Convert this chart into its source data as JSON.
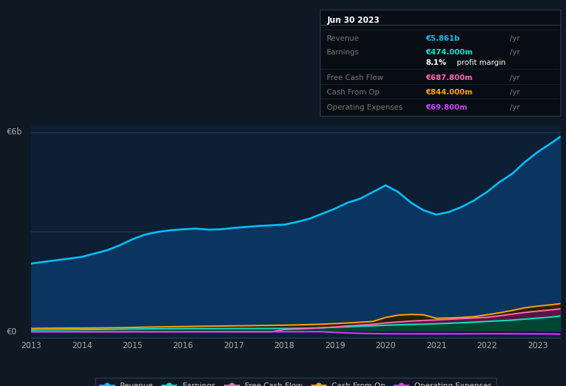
{
  "bg_color": "#0e1923",
  "plot_bg_color": "#0d1f35",
  "years": [
    2013.0,
    2013.25,
    2013.5,
    2013.75,
    2014.0,
    2014.25,
    2014.5,
    2014.75,
    2015.0,
    2015.25,
    2015.5,
    2015.75,
    2016.0,
    2016.25,
    2016.5,
    2016.75,
    2017.0,
    2017.25,
    2017.5,
    2017.75,
    2018.0,
    2018.25,
    2018.5,
    2018.75,
    2019.0,
    2019.25,
    2019.5,
    2019.75,
    2020.0,
    2020.25,
    2020.5,
    2020.75,
    2021.0,
    2021.25,
    2021.5,
    2021.75,
    2022.0,
    2022.25,
    2022.5,
    2022.75,
    2023.0,
    2023.25,
    2023.45
  ],
  "revenue": [
    2.05,
    2.1,
    2.15,
    2.2,
    2.25,
    2.35,
    2.45,
    2.6,
    2.78,
    2.92,
    3.0,
    3.05,
    3.08,
    3.1,
    3.07,
    3.08,
    3.12,
    3.15,
    3.18,
    3.2,
    3.22,
    3.3,
    3.4,
    3.55,
    3.7,
    3.88,
    4.0,
    4.2,
    4.4,
    4.2,
    3.88,
    3.65,
    3.52,
    3.6,
    3.75,
    3.95,
    4.2,
    4.5,
    4.75,
    5.1,
    5.4,
    5.65,
    5.861
  ],
  "earnings": [
    0.055,
    0.058,
    0.06,
    0.062,
    0.065,
    0.068,
    0.072,
    0.078,
    0.082,
    0.086,
    0.09,
    0.092,
    0.094,
    0.096,
    0.097,
    0.098,
    0.1,
    0.1,
    0.1,
    0.1,
    0.1,
    0.105,
    0.11,
    0.12,
    0.135,
    0.15,
    0.165,
    0.18,
    0.195,
    0.21,
    0.22,
    0.23,
    0.24,
    0.255,
    0.27,
    0.29,
    0.31,
    0.33,
    0.35,
    0.38,
    0.41,
    0.44,
    0.474
  ],
  "free_cash_flow": [
    0.0,
    0.0,
    0.0,
    0.0,
    0.0,
    0.0,
    0.0,
    0.0,
    0.0,
    0.0,
    0.0,
    0.0,
    0.0,
    0.0,
    0.0,
    0.0,
    0.0,
    0.0,
    0.0,
    0.0,
    0.07,
    0.085,
    0.1,
    0.12,
    0.145,
    0.175,
    0.2,
    0.225,
    0.265,
    0.295,
    0.32,
    0.34,
    0.355,
    0.375,
    0.395,
    0.415,
    0.435,
    0.48,
    0.53,
    0.58,
    0.62,
    0.655,
    0.688
  ],
  "cash_from_op": [
    0.1,
    0.105,
    0.108,
    0.11,
    0.112,
    0.115,
    0.118,
    0.122,
    0.13,
    0.138,
    0.145,
    0.15,
    0.155,
    0.162,
    0.168,
    0.172,
    0.178,
    0.182,
    0.188,
    0.192,
    0.198,
    0.205,
    0.215,
    0.228,
    0.245,
    0.265,
    0.285,
    0.31,
    0.43,
    0.5,
    0.52,
    0.51,
    0.405,
    0.415,
    0.43,
    0.455,
    0.51,
    0.57,
    0.64,
    0.72,
    0.77,
    0.808,
    0.844
  ],
  "op_expenses": [
    0.0,
    0.0,
    0.0,
    0.0,
    0.0,
    0.0,
    0.0,
    0.0,
    0.0,
    0.0,
    0.0,
    0.0,
    0.0,
    0.0,
    0.0,
    0.0,
    0.0,
    0.0,
    0.0,
    0.0,
    0.0,
    0.0,
    0.0,
    0.0,
    -0.02,
    -0.035,
    -0.048,
    -0.055,
    -0.06,
    -0.062,
    -0.063,
    -0.063,
    -0.063,
    -0.063,
    -0.062,
    -0.061,
    -0.06,
    -0.06,
    -0.061,
    -0.063,
    -0.064,
    -0.066,
    -0.07
  ],
  "revenue_color": "#00bfff",
  "earnings_color": "#00e5cc",
  "fcf_color": "#ff69b4",
  "cashop_color": "#ffa500",
  "opex_color": "#cc44ff",
  "xticks": [
    2013,
    2014,
    2015,
    2016,
    2017,
    2018,
    2019,
    2020,
    2021,
    2022,
    2023
  ],
  "legend_items": [
    {
      "label": "Revenue",
      "color": "#00bfff"
    },
    {
      "label": "Earnings",
      "color": "#00e5cc"
    },
    {
      "label": "Free Cash Flow",
      "color": "#ff69b4"
    },
    {
      "label": "Cash From Op",
      "color": "#ffa500"
    },
    {
      "label": "Operating Expenses",
      "color": "#cc44ff"
    }
  ],
  "infobox": {
    "date": "Jun 30 2023",
    "rows": [
      {
        "label": "Revenue",
        "value": "€5.861b",
        "unit": " /yr",
        "color": "#00bfff",
        "has_sub": false
      },
      {
        "label": "Earnings",
        "value": "€474.000m",
        "unit": " /yr",
        "color": "#00e5cc",
        "has_sub": true,
        "sub": "8.1%",
        "sub_rest": " profit margin"
      },
      {
        "label": "Free Cash Flow",
        "value": "€687.800m",
        "unit": " /yr",
        "color": "#ff69b4",
        "has_sub": false
      },
      {
        "label": "Cash From Op",
        "value": "€844.000m",
        "unit": " /yr",
        "color": "#ffa500",
        "has_sub": false
      },
      {
        "label": "Operating Expenses",
        "value": "€69.800m",
        "unit": " /yr",
        "color": "#cc44ff",
        "has_sub": false
      }
    ]
  }
}
